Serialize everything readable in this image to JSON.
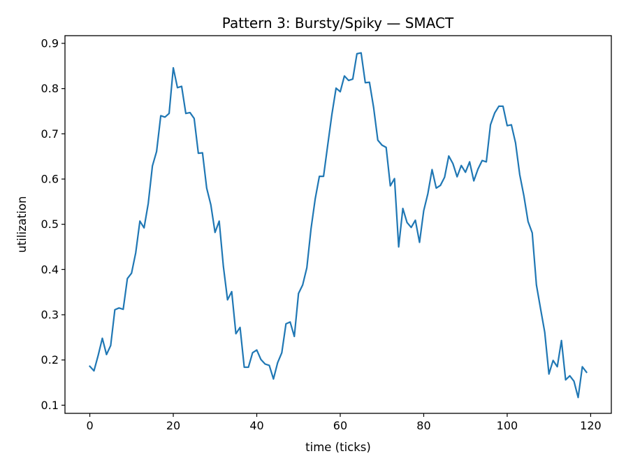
{
  "chart_data": {
    "type": "line",
    "title": "Pattern 3: Bursty/Spiky — SMACT",
    "xlabel": "time (ticks)",
    "ylabel": "utilization",
    "xlim": [
      -5.95,
      124.95
    ],
    "ylim": [
      0.082,
      0.917
    ],
    "xticks": [
      0,
      20,
      40,
      60,
      80,
      100,
      120
    ],
    "yticks": [
      0.1,
      0.2,
      0.3,
      0.4,
      0.5,
      0.6,
      0.7,
      0.8,
      0.9
    ],
    "grid": false,
    "legend": "none",
    "line_color": "#1f77b4",
    "series": [
      {
        "x": [
          0,
          1,
          2,
          3,
          4,
          5,
          6,
          7,
          8,
          9,
          10,
          11,
          12,
          13,
          14,
          15,
          16,
          17,
          18,
          19,
          20,
          21,
          22,
          23,
          24,
          25,
          26,
          27,
          28,
          29,
          30,
          31,
          32,
          33,
          34,
          35,
          36,
          37,
          38,
          39,
          40,
          41,
          42,
          43,
          44,
          45,
          46,
          47,
          48,
          49,
          50,
          51,
          52,
          53,
          54,
          55,
          56,
          57,
          58,
          59,
          60,
          61,
          62,
          63,
          64,
          65,
          66,
          67,
          68,
          69,
          70,
          71,
          72,
          73,
          74,
          75,
          76,
          77,
          78,
          79,
          80,
          81,
          82,
          83,
          84,
          85,
          86,
          87,
          88,
          89,
          90,
          91,
          92,
          93,
          94,
          95,
          96,
          97,
          98,
          99,
          100,
          101,
          102,
          103,
          104,
          105,
          106,
          107,
          108,
          109,
          110,
          111,
          112,
          113,
          114,
          115,
          116,
          117,
          118,
          119
        ],
        "values": [
          0.186,
          0.176,
          0.21,
          0.248,
          0.212,
          0.232,
          0.311,
          0.315,
          0.312,
          0.38,
          0.392,
          0.437,
          0.507,
          0.492,
          0.546,
          0.629,
          0.661,
          0.74,
          0.737,
          0.745,
          0.846,
          0.802,
          0.805,
          0.745,
          0.747,
          0.734,
          0.657,
          0.658,
          0.58,
          0.543,
          0.482,
          0.507,
          0.407,
          0.333,
          0.351,
          0.258,
          0.272,
          0.184,
          0.184,
          0.216,
          0.222,
          0.201,
          0.191,
          0.188,
          0.158,
          0.194,
          0.216,
          0.28,
          0.284,
          0.252,
          0.347,
          0.366,
          0.404,
          0.49,
          0.556,
          0.606,
          0.606,
          0.675,
          0.743,
          0.801,
          0.793,
          0.828,
          0.818,
          0.821,
          0.877,
          0.879,
          0.813,
          0.814,
          0.758,
          0.686,
          0.675,
          0.67,
          0.585,
          0.601,
          0.45,
          0.535,
          0.504,
          0.493,
          0.509,
          0.46,
          0.53,
          0.568,
          0.621,
          0.58,
          0.586,
          0.604,
          0.651,
          0.634,
          0.605,
          0.63,
          0.615,
          0.638,
          0.596,
          0.622,
          0.641,
          0.638,
          0.72,
          0.746,
          0.761,
          0.761,
          0.718,
          0.72,
          0.68,
          0.61,
          0.563,
          0.506,
          0.481,
          0.366,
          0.313,
          0.261,
          0.169,
          0.199,
          0.185,
          0.243,
          0.156,
          0.165,
          0.153,
          0.117,
          0.185,
          0.173
        ]
      }
    ]
  }
}
